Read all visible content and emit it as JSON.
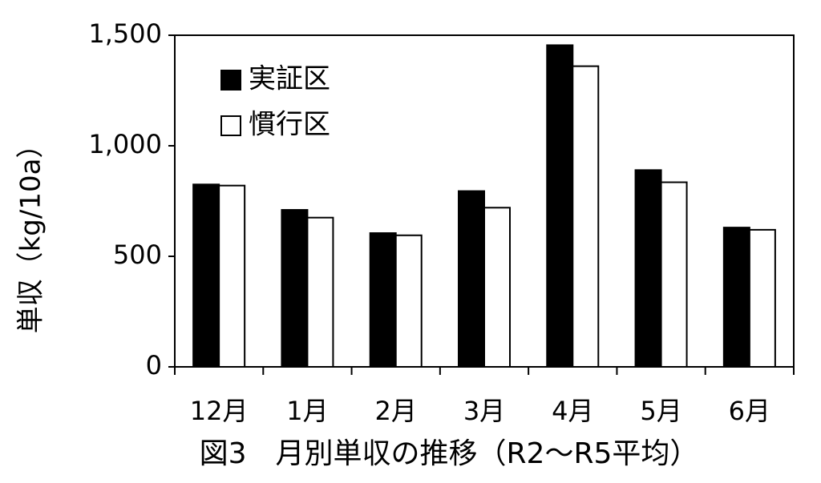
{
  "chart_data": {
    "type": "bar",
    "title": "図3　月別単収の推移（R2～R5平均）",
    "y_label": "単収（kg/10a）",
    "categories": [
      "12月",
      "1月",
      "2月",
      "3月",
      "4月",
      "5月",
      "6月"
    ],
    "series": [
      {
        "name": "実証区",
        "color": "#000000",
        "values": [
          825,
          710,
          605,
          795,
          1455,
          890,
          630
        ]
      },
      {
        "name": "慣行区",
        "color": "#ffffff",
        "values": [
          820,
          675,
          595,
          720,
          1360,
          835,
          620
        ]
      }
    ],
    "ylim": [
      0,
      1500
    ],
    "yticks": [
      0,
      500,
      {
        "value": 1000,
        "label": "1,000"
      },
      {
        "value": 1500,
        "label": "1,500"
      }
    ],
    "legend": "upper left"
  }
}
